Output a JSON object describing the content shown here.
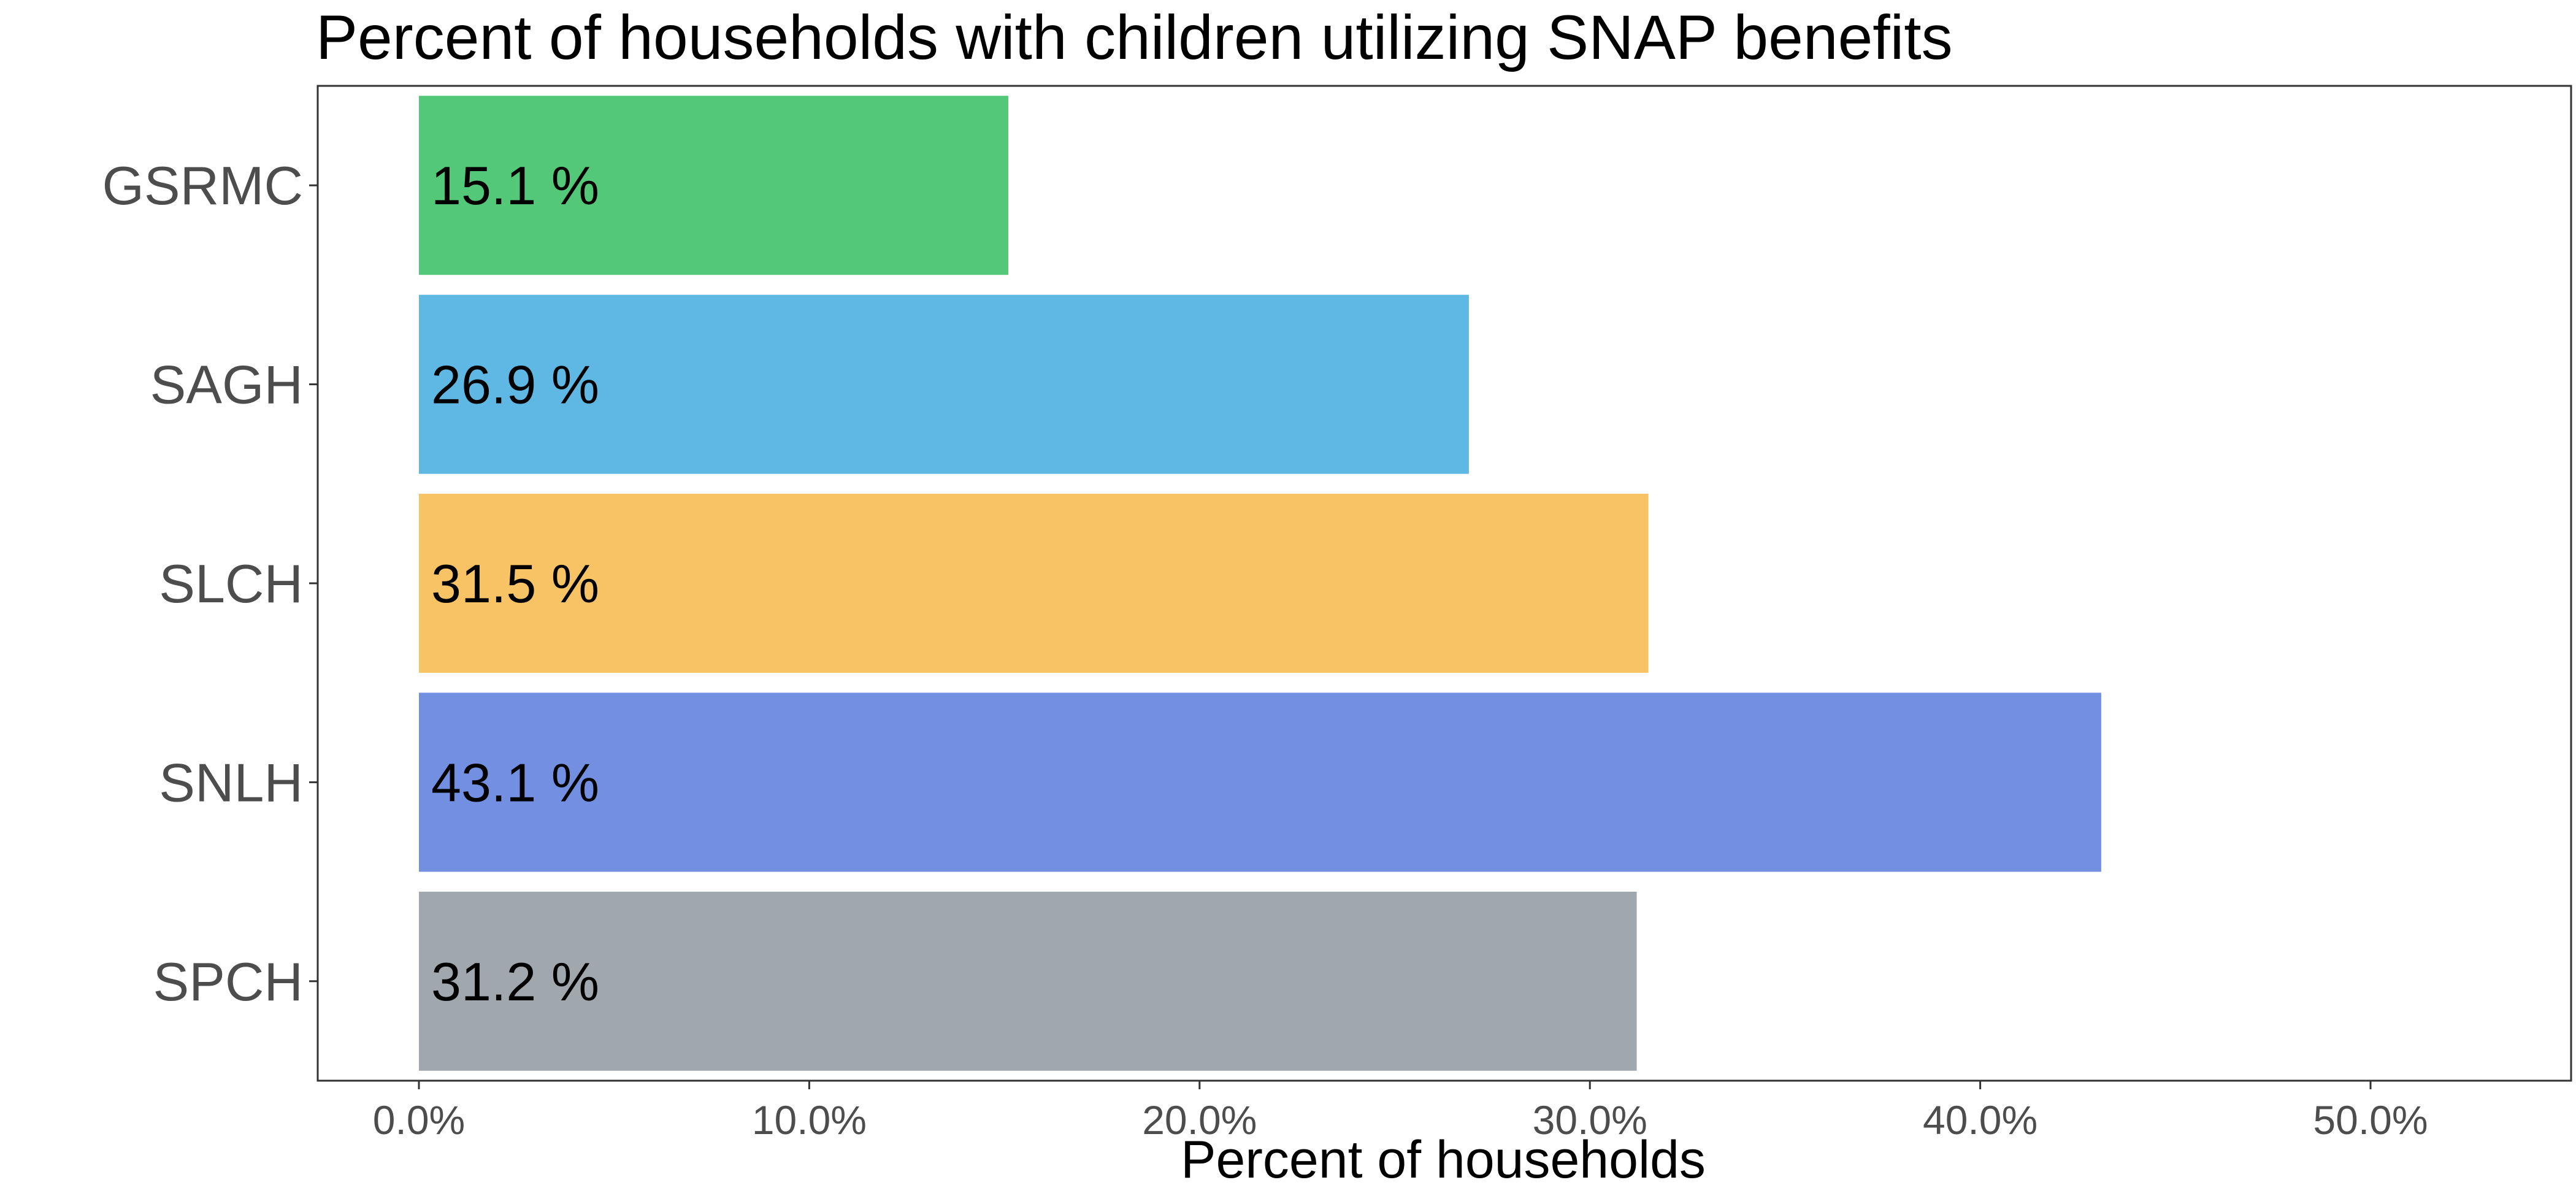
{
  "chart_data": {
    "type": "bar",
    "orientation": "horizontal",
    "title": "Percent of households with children utilizing SNAP benefits",
    "xlabel": "Percent of households",
    "ylabel": "",
    "categories": [
      "GSRMC",
      "SAGH",
      "SLCH",
      "SNLH",
      "SPCH"
    ],
    "values": [
      15.1,
      26.9,
      31.5,
      43.1,
      31.2
    ],
    "data_labels": [
      "15.1 %",
      "26.9 %",
      "31.5 %",
      "43.1 %",
      "31.2 %"
    ],
    "colors": [
      "#52c878",
      "#5fb8e4",
      "#f8c365",
      "#728fe1",
      "#a0a8ad"
    ],
    "xlim": [
      0,
      50
    ],
    "xticks": [
      0,
      10,
      20,
      30,
      40,
      50
    ],
    "xtick_labels": [
      "0.0%",
      "10.0%",
      "20.0%",
      "30.0%",
      "40.0%",
      "50.0%"
    ],
    "grid": false,
    "legend": "none"
  }
}
